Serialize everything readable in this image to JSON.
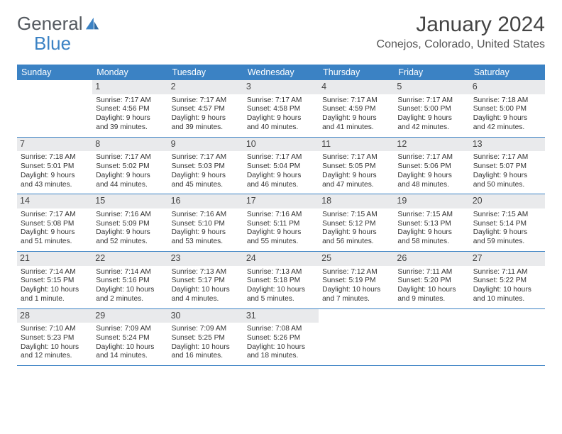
{
  "logo": {
    "textA": "General",
    "textB": "Blue"
  },
  "title": "January 2024",
  "location": "Conejos, Colorado, United States",
  "colors": {
    "header_bg": "#3b82c4",
    "daynum_bg": "#e9eaec",
    "divider": "#3b82c4",
    "text": "#333333",
    "title_text": "#444444"
  },
  "daynames": [
    "Sunday",
    "Monday",
    "Tuesday",
    "Wednesday",
    "Thursday",
    "Friday",
    "Saturday"
  ],
  "weeks": [
    [
      {
        "empty": true
      },
      {
        "n": "1",
        "sunrise": "Sunrise: 7:17 AM",
        "sunset": "Sunset: 4:56 PM",
        "day1": "Daylight: 9 hours",
        "day2": "and 39 minutes."
      },
      {
        "n": "2",
        "sunrise": "Sunrise: 7:17 AM",
        "sunset": "Sunset: 4:57 PM",
        "day1": "Daylight: 9 hours",
        "day2": "and 39 minutes."
      },
      {
        "n": "3",
        "sunrise": "Sunrise: 7:17 AM",
        "sunset": "Sunset: 4:58 PM",
        "day1": "Daylight: 9 hours",
        "day2": "and 40 minutes."
      },
      {
        "n": "4",
        "sunrise": "Sunrise: 7:17 AM",
        "sunset": "Sunset: 4:59 PM",
        "day1": "Daylight: 9 hours",
        "day2": "and 41 minutes."
      },
      {
        "n": "5",
        "sunrise": "Sunrise: 7:17 AM",
        "sunset": "Sunset: 5:00 PM",
        "day1": "Daylight: 9 hours",
        "day2": "and 42 minutes."
      },
      {
        "n": "6",
        "sunrise": "Sunrise: 7:18 AM",
        "sunset": "Sunset: 5:00 PM",
        "day1": "Daylight: 9 hours",
        "day2": "and 42 minutes."
      }
    ],
    [
      {
        "n": "7",
        "sunrise": "Sunrise: 7:18 AM",
        "sunset": "Sunset: 5:01 PM",
        "day1": "Daylight: 9 hours",
        "day2": "and 43 minutes."
      },
      {
        "n": "8",
        "sunrise": "Sunrise: 7:17 AM",
        "sunset": "Sunset: 5:02 PM",
        "day1": "Daylight: 9 hours",
        "day2": "and 44 minutes."
      },
      {
        "n": "9",
        "sunrise": "Sunrise: 7:17 AM",
        "sunset": "Sunset: 5:03 PM",
        "day1": "Daylight: 9 hours",
        "day2": "and 45 minutes."
      },
      {
        "n": "10",
        "sunrise": "Sunrise: 7:17 AM",
        "sunset": "Sunset: 5:04 PM",
        "day1": "Daylight: 9 hours",
        "day2": "and 46 minutes."
      },
      {
        "n": "11",
        "sunrise": "Sunrise: 7:17 AM",
        "sunset": "Sunset: 5:05 PM",
        "day1": "Daylight: 9 hours",
        "day2": "and 47 minutes."
      },
      {
        "n": "12",
        "sunrise": "Sunrise: 7:17 AM",
        "sunset": "Sunset: 5:06 PM",
        "day1": "Daylight: 9 hours",
        "day2": "and 48 minutes."
      },
      {
        "n": "13",
        "sunrise": "Sunrise: 7:17 AM",
        "sunset": "Sunset: 5:07 PM",
        "day1": "Daylight: 9 hours",
        "day2": "and 50 minutes."
      }
    ],
    [
      {
        "n": "14",
        "sunrise": "Sunrise: 7:17 AM",
        "sunset": "Sunset: 5:08 PM",
        "day1": "Daylight: 9 hours",
        "day2": "and 51 minutes."
      },
      {
        "n": "15",
        "sunrise": "Sunrise: 7:16 AM",
        "sunset": "Sunset: 5:09 PM",
        "day1": "Daylight: 9 hours",
        "day2": "and 52 minutes."
      },
      {
        "n": "16",
        "sunrise": "Sunrise: 7:16 AM",
        "sunset": "Sunset: 5:10 PM",
        "day1": "Daylight: 9 hours",
        "day2": "and 53 minutes."
      },
      {
        "n": "17",
        "sunrise": "Sunrise: 7:16 AM",
        "sunset": "Sunset: 5:11 PM",
        "day1": "Daylight: 9 hours",
        "day2": "and 55 minutes."
      },
      {
        "n": "18",
        "sunrise": "Sunrise: 7:15 AM",
        "sunset": "Sunset: 5:12 PM",
        "day1": "Daylight: 9 hours",
        "day2": "and 56 minutes."
      },
      {
        "n": "19",
        "sunrise": "Sunrise: 7:15 AM",
        "sunset": "Sunset: 5:13 PM",
        "day1": "Daylight: 9 hours",
        "day2": "and 58 minutes."
      },
      {
        "n": "20",
        "sunrise": "Sunrise: 7:15 AM",
        "sunset": "Sunset: 5:14 PM",
        "day1": "Daylight: 9 hours",
        "day2": "and 59 minutes."
      }
    ],
    [
      {
        "n": "21",
        "sunrise": "Sunrise: 7:14 AM",
        "sunset": "Sunset: 5:15 PM",
        "day1": "Daylight: 10 hours",
        "day2": "and 1 minute."
      },
      {
        "n": "22",
        "sunrise": "Sunrise: 7:14 AM",
        "sunset": "Sunset: 5:16 PM",
        "day1": "Daylight: 10 hours",
        "day2": "and 2 minutes."
      },
      {
        "n": "23",
        "sunrise": "Sunrise: 7:13 AM",
        "sunset": "Sunset: 5:17 PM",
        "day1": "Daylight: 10 hours",
        "day2": "and 4 minutes."
      },
      {
        "n": "24",
        "sunrise": "Sunrise: 7:13 AM",
        "sunset": "Sunset: 5:18 PM",
        "day1": "Daylight: 10 hours",
        "day2": "and 5 minutes."
      },
      {
        "n": "25",
        "sunrise": "Sunrise: 7:12 AM",
        "sunset": "Sunset: 5:19 PM",
        "day1": "Daylight: 10 hours",
        "day2": "and 7 minutes."
      },
      {
        "n": "26",
        "sunrise": "Sunrise: 7:11 AM",
        "sunset": "Sunset: 5:20 PM",
        "day1": "Daylight: 10 hours",
        "day2": "and 9 minutes."
      },
      {
        "n": "27",
        "sunrise": "Sunrise: 7:11 AM",
        "sunset": "Sunset: 5:22 PM",
        "day1": "Daylight: 10 hours",
        "day2": "and 10 minutes."
      }
    ],
    [
      {
        "n": "28",
        "sunrise": "Sunrise: 7:10 AM",
        "sunset": "Sunset: 5:23 PM",
        "day1": "Daylight: 10 hours",
        "day2": "and 12 minutes."
      },
      {
        "n": "29",
        "sunrise": "Sunrise: 7:09 AM",
        "sunset": "Sunset: 5:24 PM",
        "day1": "Daylight: 10 hours",
        "day2": "and 14 minutes."
      },
      {
        "n": "30",
        "sunrise": "Sunrise: 7:09 AM",
        "sunset": "Sunset: 5:25 PM",
        "day1": "Daylight: 10 hours",
        "day2": "and 16 minutes."
      },
      {
        "n": "31",
        "sunrise": "Sunrise: 7:08 AM",
        "sunset": "Sunset: 5:26 PM",
        "day1": "Daylight: 10 hours",
        "day2": "and 18 minutes."
      },
      {
        "empty": true
      },
      {
        "empty": true
      },
      {
        "empty": true
      }
    ]
  ]
}
